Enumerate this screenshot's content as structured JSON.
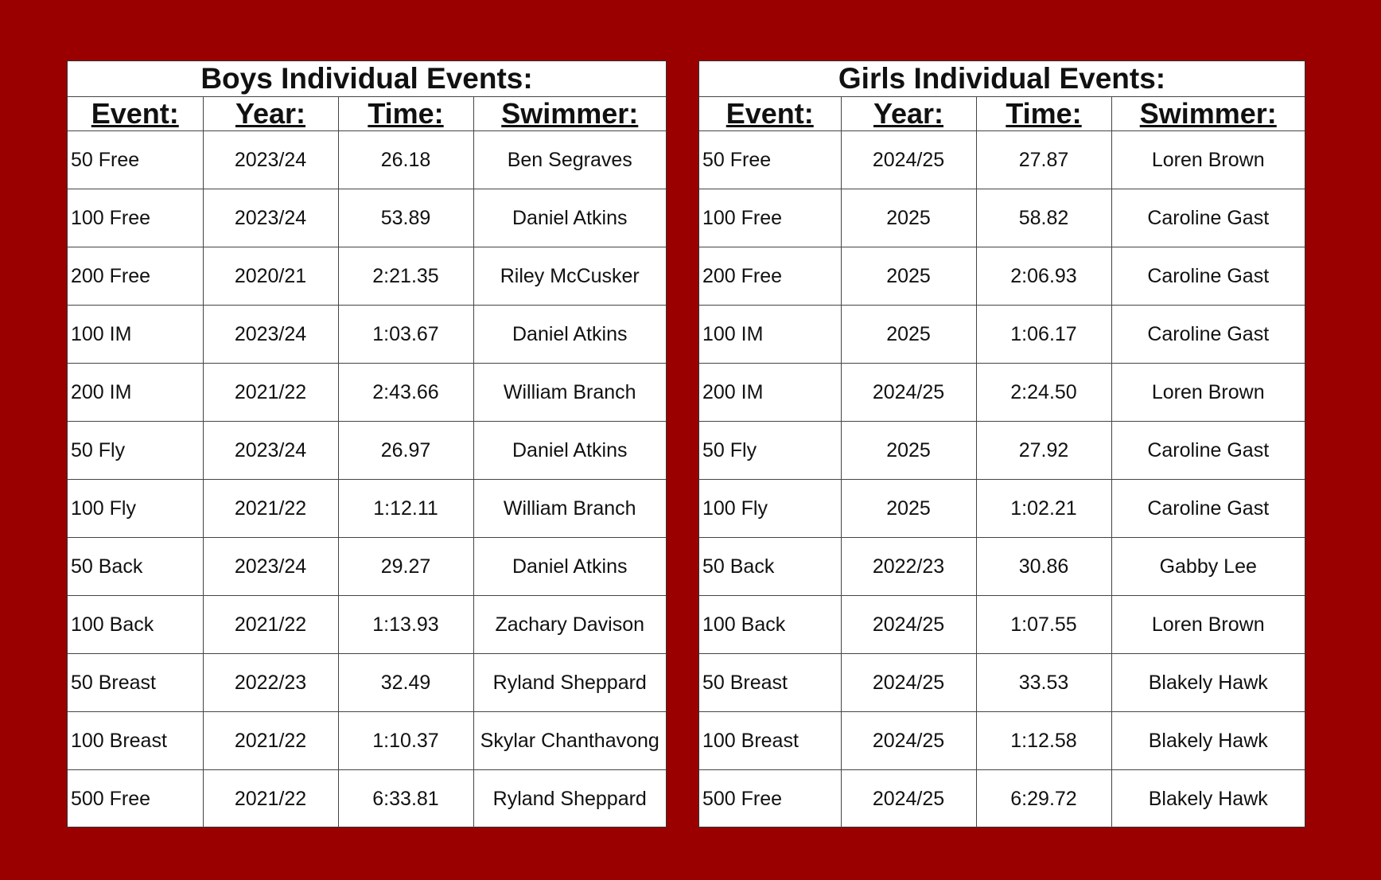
{
  "boys": {
    "title": "Boys Individual Events:",
    "headers": [
      "Event:",
      "Year:",
      "Time:",
      "Swimmer:"
    ],
    "rows": [
      {
        "event": "50 Free",
        "year": "2023/24",
        "time": "26.18",
        "swimmer": "Ben Segraves"
      },
      {
        "event": "100 Free",
        "year": "2023/24",
        "time": "53.89",
        "swimmer": "Daniel Atkins"
      },
      {
        "event": "200 Free",
        "year": "2020/21",
        "time": "2:21.35",
        "swimmer": "Riley McCusker"
      },
      {
        "event": "100 IM",
        "year": "2023/24",
        "time": "1:03.67",
        "swimmer": "Daniel Atkins"
      },
      {
        "event": "200 IM",
        "year": "2021/22",
        "time": "2:43.66",
        "swimmer": "William Branch"
      },
      {
        "event": "50 Fly",
        "year": "2023/24",
        "time": "26.97",
        "swimmer": "Daniel Atkins"
      },
      {
        "event": "100 Fly",
        "year": "2021/22",
        "time": "1:12.11",
        "swimmer": "William Branch"
      },
      {
        "event": "50 Back",
        "year": "2023/24",
        "time": "29.27",
        "swimmer": "Daniel Atkins"
      },
      {
        "event": "100 Back",
        "year": "2021/22",
        "time": "1:13.93",
        "swimmer": "Zachary Davison"
      },
      {
        "event": "50 Breast",
        "year": "2022/23",
        "time": "32.49",
        "swimmer": "Ryland Sheppard"
      },
      {
        "event": "100 Breast",
        "year": "2021/22",
        "time": "1:10.37",
        "swimmer": "Skylar Chanthavong"
      },
      {
        "event": "500 Free",
        "year": "2021/22",
        "time": "6:33.81",
        "swimmer": "Ryland Sheppard"
      }
    ]
  },
  "girls": {
    "title": "Girls Individual Events:",
    "headers": [
      "Event:",
      "Year:",
      "Time:",
      "Swimmer:"
    ],
    "rows": [
      {
        "event": "50 Free",
        "year": "2024/25",
        "time": "27.87",
        "swimmer": "Loren Brown"
      },
      {
        "event": "100 Free",
        "year": "2025",
        "time": "58.82",
        "swimmer": "Caroline Gast"
      },
      {
        "event": "200 Free",
        "year": "2025",
        "time": "2:06.93",
        "swimmer": "Caroline Gast"
      },
      {
        "event": "100 IM",
        "year": "2025",
        "time": "1:06.17",
        "swimmer": "Caroline Gast"
      },
      {
        "event": "200 IM",
        "year": "2024/25",
        "time": "2:24.50",
        "swimmer": "Loren Brown"
      },
      {
        "event": "50 Fly",
        "year": "2025",
        "time": "27.92",
        "swimmer": "Caroline Gast"
      },
      {
        "event": "100 Fly",
        "year": "2025",
        "time": "1:02.21",
        "swimmer": "Caroline Gast"
      },
      {
        "event": "50 Back",
        "year": "2022/23",
        "time": "30.86",
        "swimmer": "Gabby Lee"
      },
      {
        "event": "100 Back",
        "year": "2024/25",
        "time": "1:07.55",
        "swimmer": "Loren Brown"
      },
      {
        "event": "50 Breast",
        "year": "2024/25",
        "time": "33.53",
        "swimmer": "Blakely Hawk"
      },
      {
        "event": "100 Breast",
        "year": "2024/25",
        "time": "1:12.58",
        "swimmer": "Blakely Hawk"
      },
      {
        "event": "500 Free",
        "year": "2024/25",
        "time": "6:29.72",
        "swimmer": "Blakely Hawk"
      }
    ]
  },
  "colors": {
    "background": "#9a0000",
    "panel": "#ffffff",
    "text": "#111111"
  }
}
